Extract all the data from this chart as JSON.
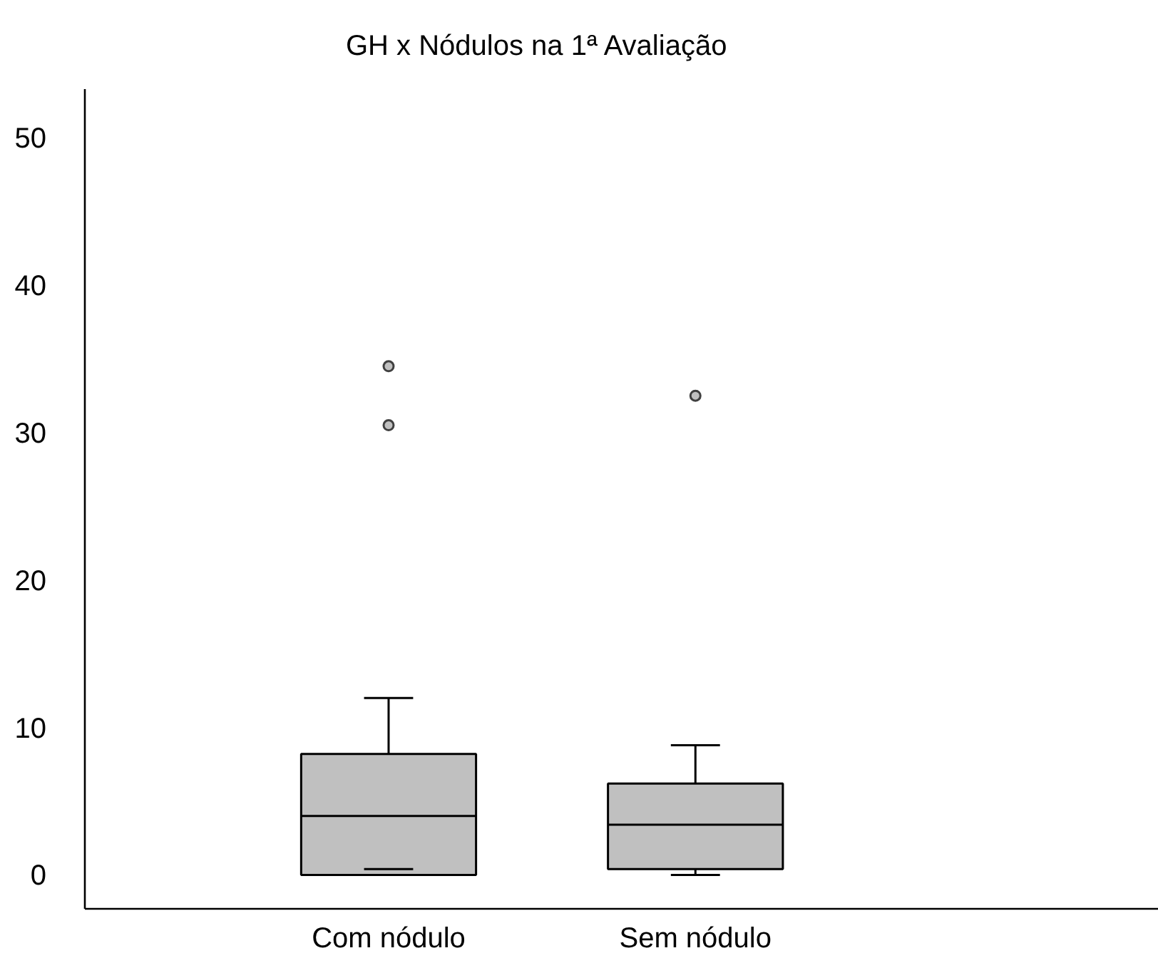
{
  "chart_data": {
    "type": "box",
    "title": "GH x Nódulos na 1ª Avaliação",
    "categories": [
      "Com nódulo",
      "Sem nódulo"
    ],
    "series": [
      {
        "color": "#c0c0c0",
        "boxes": [
          {
            "low": 0.4,
            "q1": 0,
            "median": 4,
            "q3": 8.2,
            "high": 12,
            "outliers": [
              34.5,
              30.5
            ]
          },
          {
            "low": 0,
            "q1": 0.4,
            "median": 3.4,
            "q3": 6.2,
            "high": 8.8,
            "outliers": [
              32.5
            ]
          }
        ]
      }
    ],
    "ylim": [
      -2.3,
      53.3
    ],
    "yticks": [
      0,
      10,
      20,
      30,
      40,
      50
    ],
    "grid": false
  }
}
